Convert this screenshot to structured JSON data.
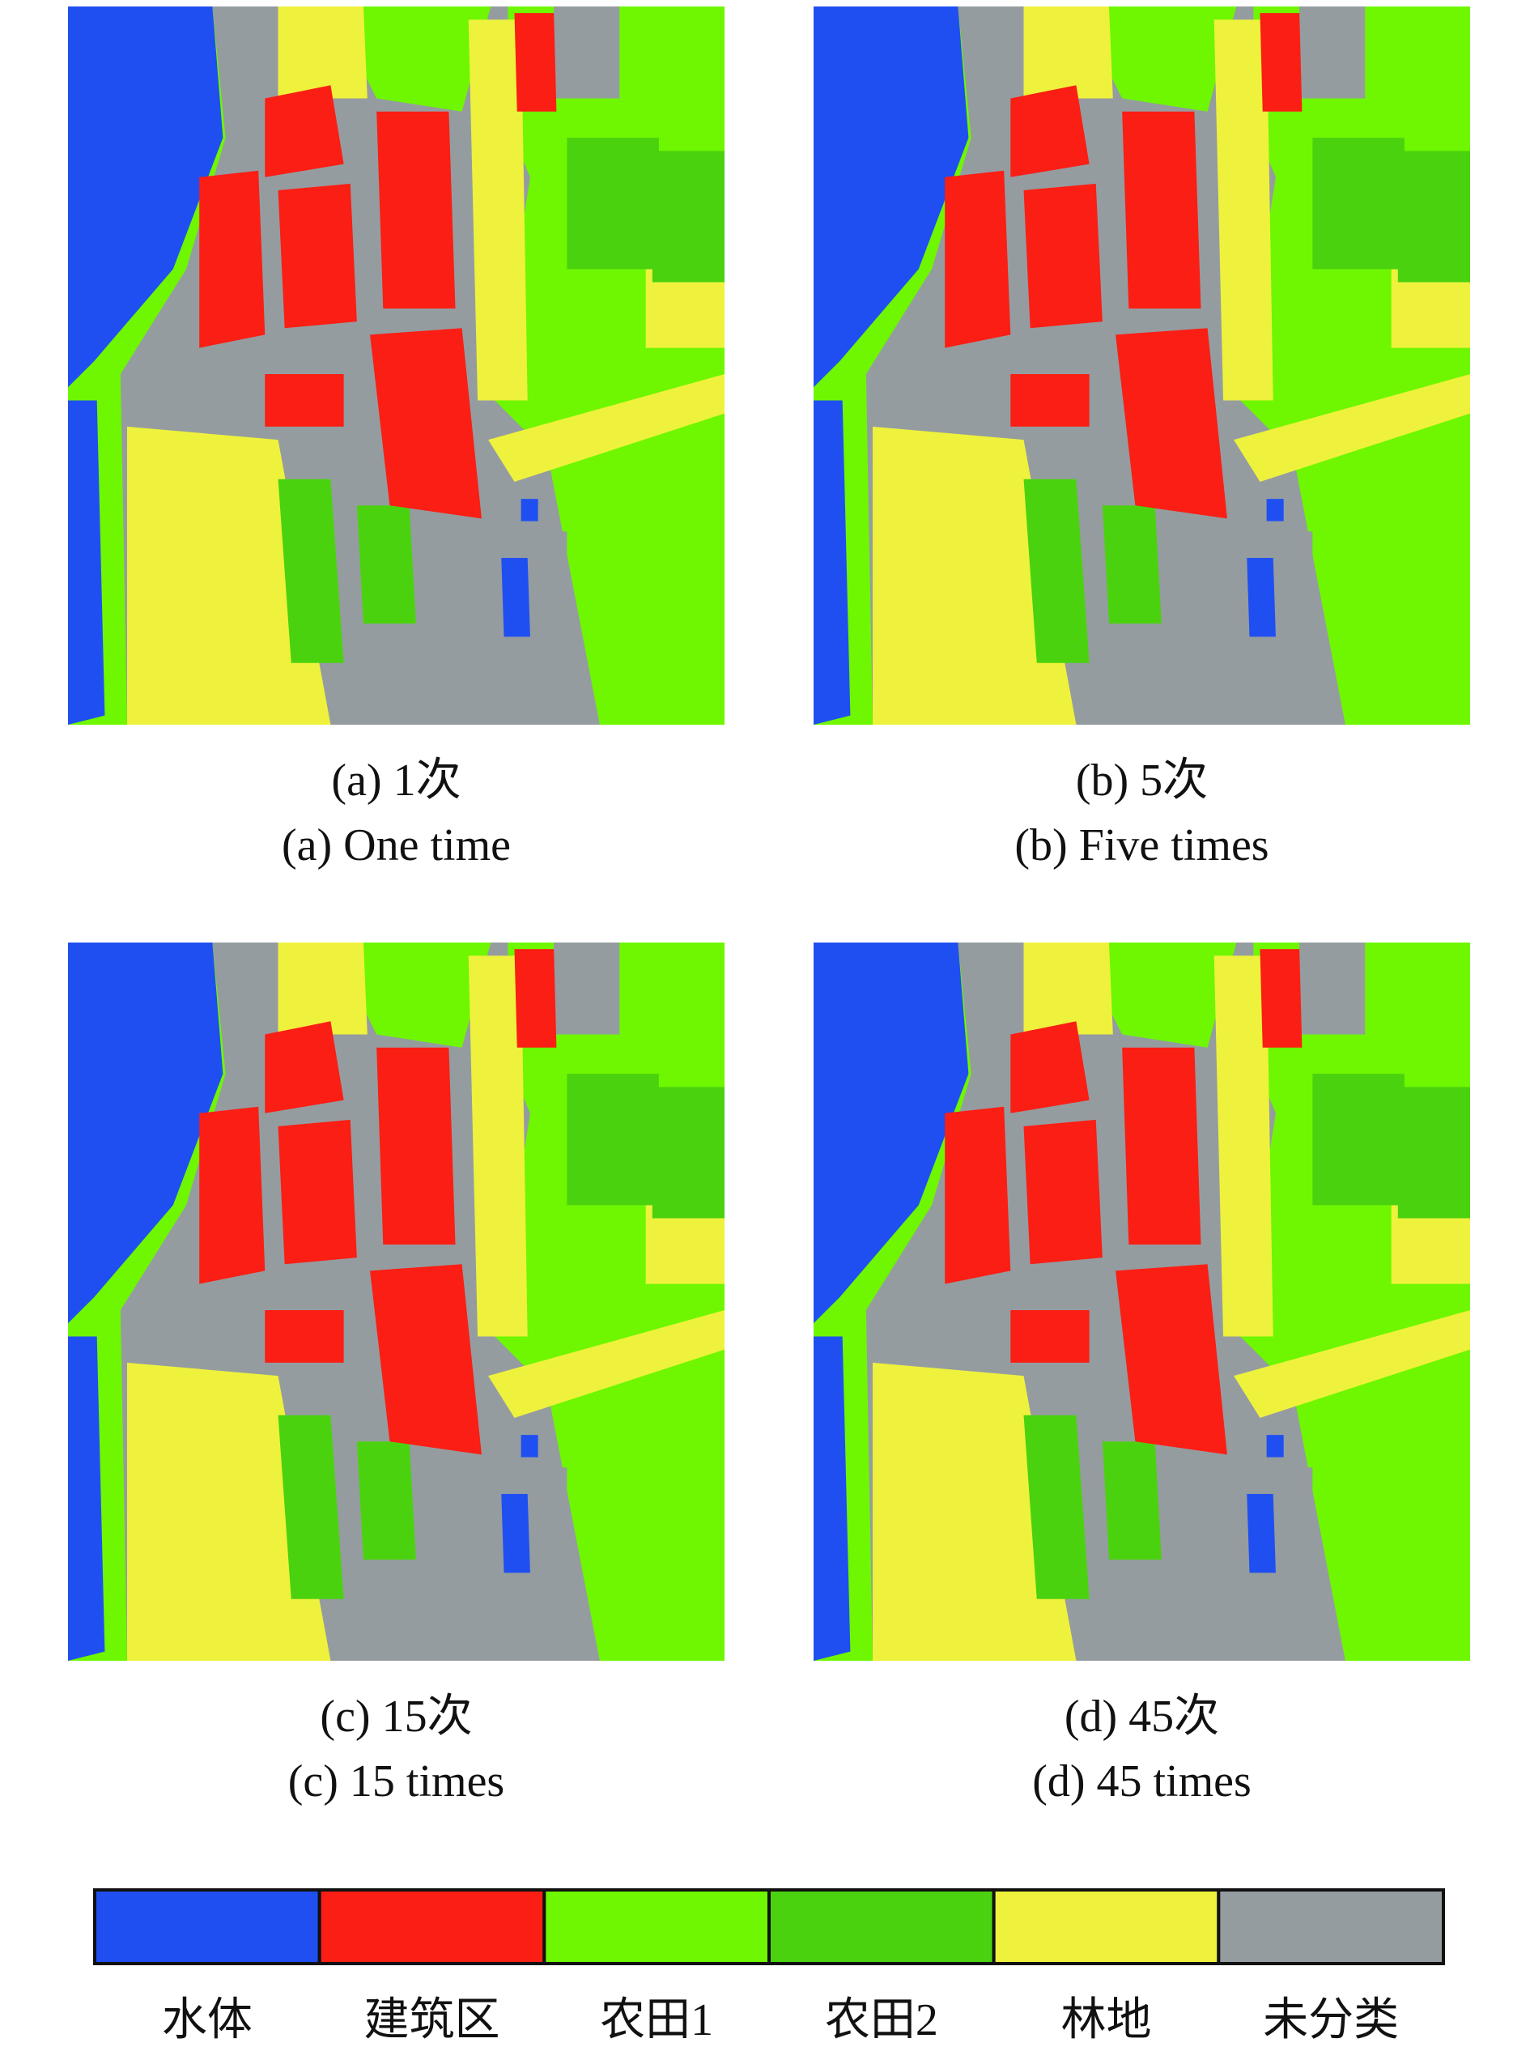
{
  "panels": [
    {
      "caption_cn": "(a) 1次",
      "caption_en": "(a) One time"
    },
    {
      "caption_cn": "(b) 5次",
      "caption_en": "(b) Five times"
    },
    {
      "caption_cn": "(c) 15次",
      "caption_en": "(c) 15 times"
    },
    {
      "caption_cn": "(d) 45次",
      "caption_en": "(d) 45 times"
    }
  ],
  "legend": {
    "items": [
      {
        "label": "水体",
        "color": "#1f4ff0"
      },
      {
        "label": "建筑区",
        "color": "#fa1e14"
      },
      {
        "label": "农田1",
        "color": "#6ef700"
      },
      {
        "label": "农田2",
        "color": "#4bd20f"
      },
      {
        "label": "林地",
        "color": "#eef23c"
      },
      {
        "label": "未分类",
        "color": "#959ca0"
      }
    ]
  }
}
